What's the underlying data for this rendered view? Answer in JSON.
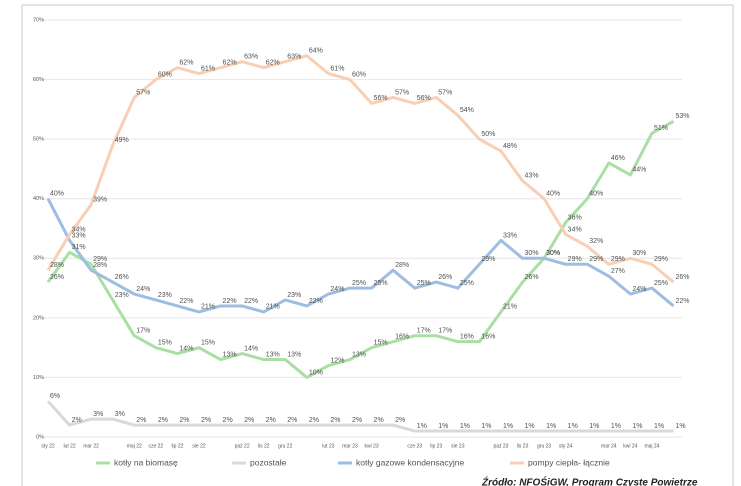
{
  "chart_data": {
    "type": "line",
    "categories": [
      "sty 22",
      "lut 22",
      "mar 22",
      null,
      "maj 22",
      "cze 22",
      "lip 22",
      "sie 22",
      null,
      "paź 22",
      "lis 22",
      "gru 22",
      null,
      "lut 23",
      "mar 23",
      "kwi 23",
      null,
      "cze 23",
      "lip 23",
      "sie 23",
      null,
      "paź 23",
      "lis 23",
      "gru 23",
      "sty 24",
      null,
      "mar 24",
      "kwi 24",
      "maj 24",
      null
    ],
    "series": [
      {
        "name": "kotły na biomasę",
        "color": "#a9dfa3",
        "values": [
          26,
          31,
          29,
          23,
          17,
          15,
          14,
          15,
          13,
          14,
          13,
          13,
          10,
          12,
          13,
          15,
          16,
          17,
          17,
          16,
          16,
          21,
          26,
          30,
          36,
          40,
          46,
          44,
          51,
          53
        ],
        "value_labels": [
          "26%",
          "31%",
          "29%",
          "23%",
          "17%",
          "15%",
          "14%",
          "15%",
          "13%",
          "14%",
          "13%",
          "13%",
          "10%",
          "12%",
          "13%",
          "15%",
          "16%",
          "17%",
          "17%",
          "16%",
          "16%",
          "21%",
          "26%",
          "30%",
          "36%",
          "40%",
          "46%",
          "44%",
          "51%",
          "53%"
        ]
      },
      {
        "name": "pozostałe",
        "color": "#d9d9d9",
        "values": [
          6,
          2,
          3,
          3,
          2,
          2,
          2,
          2,
          2,
          2,
          2,
          2,
          2,
          2,
          2,
          2,
          2,
          1,
          1,
          1,
          1,
          1,
          1,
          1,
          1,
          1,
          1,
          1,
          1,
          1
        ],
        "value_labels": [
          "6%",
          "2%",
          "3%",
          "3%",
          "2%",
          "2%",
          "2%",
          "2%",
          "2%",
          "2%",
          "2%",
          "2%",
          "2%",
          "2%",
          "2%",
          "2%",
          "2%",
          "1%",
          "1%",
          "1%",
          "1%",
          "1%",
          "1%",
          "1%",
          "1%",
          "1%",
          "1%",
          "1%",
          "1%",
          "1%"
        ]
      },
      {
        "name": "kotły gazowe kondensacyjne",
        "color": "#9dbde3",
        "values": [
          40,
          33,
          28,
          26,
          24,
          23,
          22,
          21,
          22,
          22,
          21,
          23,
          22,
          24,
          25,
          25,
          28,
          25,
          26,
          25,
          29,
          33,
          30,
          30,
          29,
          29,
          27,
          24,
          25,
          22
        ],
        "value_labels": [
          "40%",
          "33%",
          "28%",
          "26%",
          "24%",
          "23%",
          "22%",
          "21%",
          "22%",
          "22%",
          "21%",
          "23%",
          "22%",
          "24%",
          "25%",
          "25%",
          "28%",
          "25%",
          "26%",
          "25%",
          "29%",
          "33%",
          "30%",
          "30%",
          "29%",
          "29%",
          "27%",
          "24%",
          "25%",
          "22%"
        ]
      },
      {
        "name": "pompy ciepła- łącznie",
        "color": "#f8cfb3",
        "values": [
          28,
          34,
          39,
          49,
          57,
          60,
          62,
          61,
          62,
          63,
          62,
          63,
          64,
          61,
          60,
          56,
          57,
          56,
          57,
          54,
          50,
          48,
          43,
          40,
          34,
          32,
          29,
          30,
          29,
          26
        ],
        "value_labels": [
          "28%",
          "34%",
          "39%",
          "49%",
          "57%",
          "60%",
          "62%",
          "61%",
          "62%",
          "63%",
          "62%",
          "63%",
          "64%",
          "61%",
          "60%",
          "56%",
          "57%",
          "56%",
          "57%",
          "54%",
          "50%",
          "48%",
          "43%",
          "40%",
          "34%",
          "32%",
          "29%",
          "30%",
          "29%",
          "26%"
        ]
      }
    ],
    "ylim": [
      0,
      70
    ],
    "yticks": [
      {
        "value": 0,
        "label": "0%"
      },
      {
        "value": 10,
        "label": "10%"
      },
      {
        "value": 20,
        "label": "20%"
      },
      {
        "value": 30,
        "label": "30%"
      },
      {
        "value": 40,
        "label": "40%"
      },
      {
        "value": 50,
        "label": "50%"
      },
      {
        "value": 60,
        "label": "60%"
      },
      {
        "value": 70,
        "label": "70%"
      }
    ],
    "grid": true,
    "legend": "bottom",
    "source": "Źródło: NFOŚiGW, Program Czyste Powietrze"
  }
}
